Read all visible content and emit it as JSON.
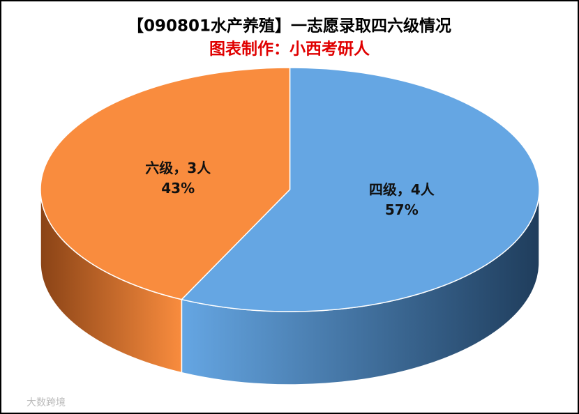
{
  "chart_data": {
    "type": "pie",
    "title": "【090801水产养殖】一志愿录取四六级情况",
    "subtitle": "图表制作：小西考研人",
    "values": [
      4,
      3
    ],
    "value_labels": [
      "四级，4人",
      "六级，3人"
    ],
    "percents": [
      57,
      43
    ],
    "percent_labels": [
      "57%",
      "43%"
    ],
    "colors": [
      "#65a6e3",
      "#f98c3e"
    ],
    "side_colors": [
      "#1f3d5c",
      "#8a4316"
    ]
  },
  "watermark": "大数跨境"
}
